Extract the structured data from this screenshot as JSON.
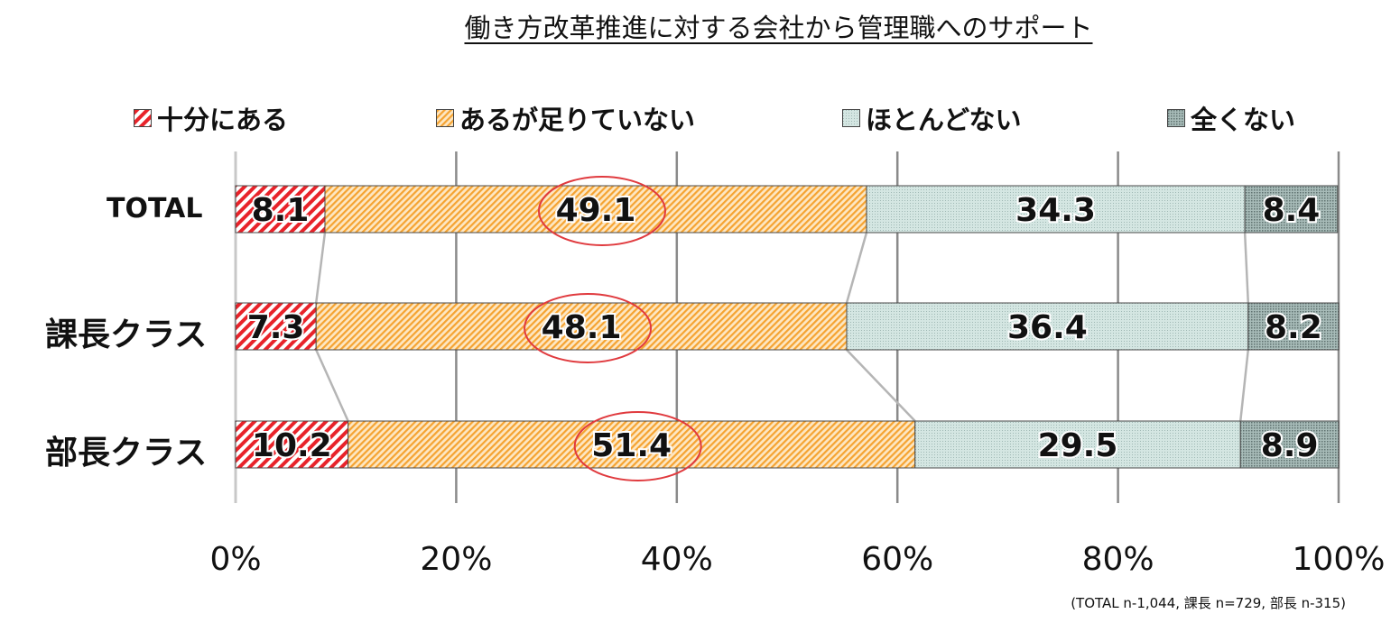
{
  "chart_data": {
    "type": "bar",
    "orientation": "horizontal-stacked-100",
    "title": "働き方改革推進に対する会社から管理職へのサポート",
    "categories": [
      "TOTAL",
      "課長クラス",
      "部長クラス"
    ],
    "series": [
      {
        "name": "十分にある",
        "values": [
          8.1,
          7.3,
          10.2
        ],
        "color": "#e8232a",
        "pattern": "diag-stripes-red"
      },
      {
        "name": "あるが足りていない",
        "values": [
          49.1,
          48.1,
          51.4
        ],
        "color": "#f7a836",
        "pattern": "diag-stripes-orange"
      },
      {
        "name": "ほとんどない",
        "values": [
          34.3,
          36.4,
          29.5
        ],
        "color": "#c9dfda",
        "pattern": "dots-light"
      },
      {
        "name": "全くない",
        "values": [
          8.4,
          8.2,
          8.9
        ],
        "color": "#8fa6a3",
        "pattern": "dots-dark"
      }
    ],
    "data_labels": [
      [
        "8.1",
        "49.1",
        "34.3",
        "8.4"
      ],
      [
        "7.3",
        "48.1",
        "36.4",
        "8.2"
      ],
      [
        "10.2",
        "51.4",
        "29.5",
        "8.9"
      ]
    ],
    "xlim": [
      0,
      100
    ],
    "x_ticks": [
      "0%",
      "20%",
      "40%",
      "60%",
      "80%",
      "100%"
    ],
    "grid": true,
    "legend_position": "top",
    "highlighted_series": "あるが足りていない",
    "highlight_color": "#e03a3e",
    "footnote": "(TOTAL n-1,044, 課長 n=729, 部長 n-315)"
  }
}
